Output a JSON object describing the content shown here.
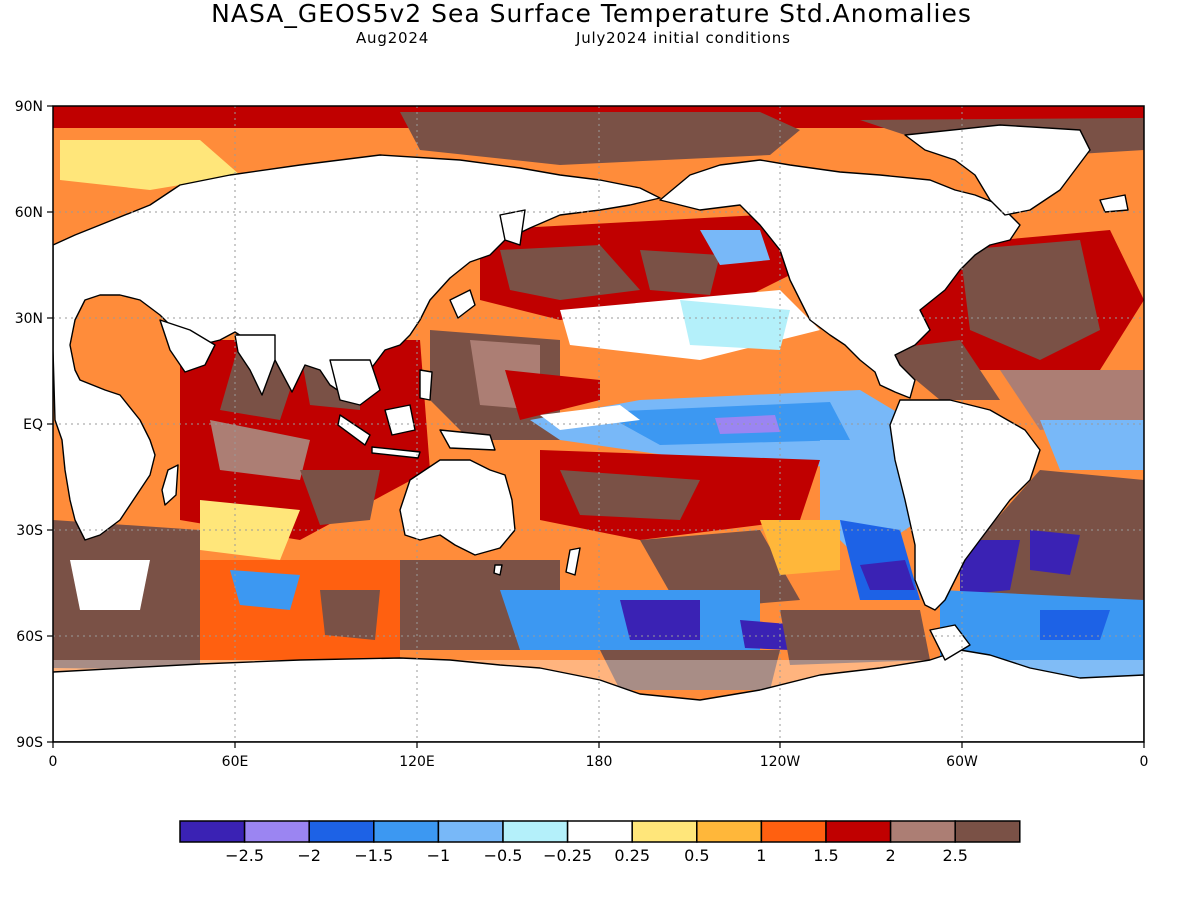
{
  "title": "NASA_GEOS5v2 Sea Surface Temperature Std.Anomalies",
  "subtitle_left": "Aug2024",
  "subtitle_right": "July2024 initial conditions",
  "lat_labels": [
    "90N",
    "60N",
    "30N",
    "EQ",
    "30S",
    "60S",
    "90S"
  ],
  "lon_labels": [
    "0",
    "60E",
    "120E",
    "180",
    "120W",
    "60W",
    "0"
  ],
  "colorbar": {
    "colors": [
      "#3a22b4",
      "#9b85f2",
      "#1d62e6",
      "#3c98f2",
      "#78b8f8",
      "#b4f0fa",
      "#ffffff",
      "#ffe67a",
      "#ffb73a",
      "#ff6010",
      "#c00000",
      "#ac7e74",
      "#7a5146"
    ],
    "tick_labels": [
      "-2.5",
      "-2",
      "-1.5",
      "-1",
      "-0.5",
      "-0.25",
      "0.25",
      "0.5",
      "1",
      "1.5",
      "2",
      "2.5"
    ]
  }
}
